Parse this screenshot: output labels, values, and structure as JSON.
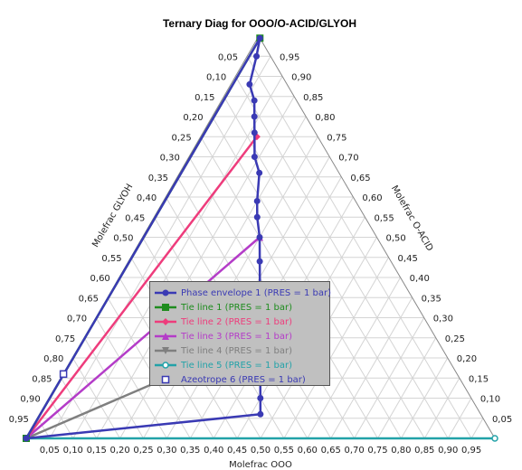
{
  "chart_data": {
    "type": "ternary",
    "title": "Ternary Diag for OOO/O-ACID/GLYOH",
    "axes": {
      "bottom": "Molefrac OOO",
      "right": "Molefrac O-ACID",
      "left": "Molefrac GLYOH"
    },
    "tick_values": [
      0.05,
      0.1,
      0.15,
      0.2,
      0.25,
      0.3,
      0.35,
      0.4,
      0.45,
      0.5,
      0.55,
      0.6,
      0.65,
      0.7,
      0.75,
      0.8,
      0.85,
      0.9,
      0.95
    ],
    "tick_labels": [
      "0,05",
      "0,10",
      "0,15",
      "0,20",
      "0,25",
      "0,30",
      "0,35",
      "0,40",
      "0,45",
      "0,50",
      "0,55",
      "0,60",
      "0,65",
      "0,70",
      "0,75",
      "0,80",
      "0,85",
      "0,90",
      "0,95"
    ],
    "series": [
      {
        "name": "Phase envelope 1 (PRES = 1  bar)",
        "color": "#3a3ab4",
        "marker": "circle",
        "points": [
          {
            "OOO": 0.0,
            "O-ACID": 0.0
          },
          {
            "OOO": 0.005,
            "O-ACID": 0.995
          },
          {
            "OOO": 0.02,
            "O-ACID": 0.95
          },
          {
            "OOO": 0.04,
            "O-ACID": 0.88
          },
          {
            "OOO": 0.07,
            "O-ACID": 0.84
          },
          {
            "OOO": 0.09,
            "O-ACID": 0.8
          },
          {
            "OOO": 0.11,
            "O-ACID": 0.76
          },
          {
            "OOO": 0.14,
            "O-ACID": 0.7
          },
          {
            "OOO": 0.17,
            "O-ACID": 0.66
          },
          {
            "OOO": 0.2,
            "O-ACID": 0.59
          },
          {
            "OOO": 0.22,
            "O-ACID": 0.55
          },
          {
            "OOO": 0.25,
            "O-ACID": 0.5
          },
          {
            "OOO": 0.28,
            "O-ACID": 0.44
          },
          {
            "OOO": 0.32,
            "O-ACID": 0.36
          },
          {
            "OOO": 0.35,
            "O-ACID": 0.3
          },
          {
            "OOO": 0.375,
            "O-ACID": 0.25
          },
          {
            "OOO": 0.41,
            "O-ACID": 0.19
          },
          {
            "OOO": 0.43,
            "O-ACID": 0.14
          },
          {
            "OOO": 0.45,
            "O-ACID": 0.1
          },
          {
            "OOO": 0.47,
            "O-ACID": 0.06
          },
          {
            "OOO": 0.0,
            "O-ACID": 0.0
          }
        ]
      },
      {
        "name": "Tie line 1 (PRES = 1  bar)",
        "color": "#1e8c1e",
        "marker": "square",
        "points": [
          {
            "OOO": 0.0,
            "O-ACID": 0.0
          },
          {
            "OOO": 0.005,
            "O-ACID": 0.995
          }
        ]
      },
      {
        "name": "Tie line 2 (PRES = 1  bar)",
        "color": "#ee3c7c",
        "marker": "diamond",
        "points": [
          {
            "OOO": 0.0,
            "O-ACID": 0.0
          },
          {
            "OOO": 0.12,
            "O-ACID": 0.75
          }
        ]
      },
      {
        "name": "Tie line 3 (PRES = 1  bar)",
        "color": "#b43cc8",
        "marker": "triangle-up",
        "points": [
          {
            "OOO": 0.0,
            "O-ACID": 0.0
          },
          {
            "OOO": 0.25,
            "O-ACID": 0.5
          }
        ]
      },
      {
        "name": "Tie line 4 (PRES = 1  bar)",
        "color": "#7f7f7f",
        "marker": "triangle-down",
        "points": [
          {
            "OOO": 0.0,
            "O-ACID": 0.0
          },
          {
            "OOO": 0.375,
            "O-ACID": 0.25
          }
        ]
      },
      {
        "name": "Tie line 5 (PRES = 1  bar)",
        "color": "#22a2a8",
        "marker": "open-circle",
        "points": [
          {
            "OOO": 0.0,
            "O-ACID": 0.0
          },
          {
            "OOO": 1.0,
            "O-ACID": 0.0
          }
        ]
      },
      {
        "name": "Azeotrope 6 (PRES = 1  bar)",
        "color": "#3a3ab4",
        "marker": "open-square",
        "points": [
          {
            "OOO": 0.0,
            "O-ACID": 0.16
          }
        ]
      }
    ],
    "legend_placement": "center-left",
    "grid": true
  }
}
